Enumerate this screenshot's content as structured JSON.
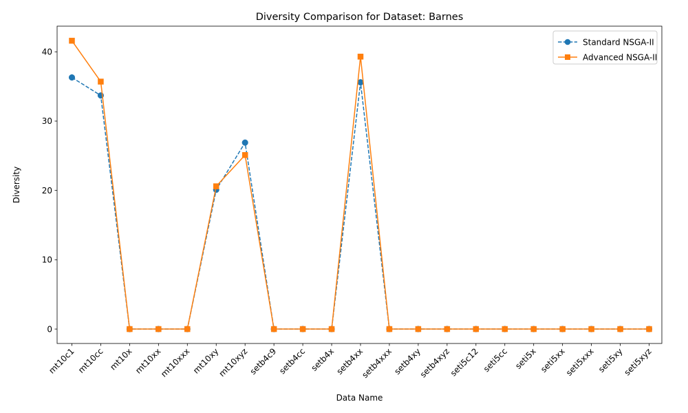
{
  "chart_data": {
    "type": "line",
    "title": "Diversity Comparison for Dataset: Barnes",
    "xlabel": "Data Name",
    "ylabel": "Diversity",
    "categories": [
      "mt10c1",
      "mt10cc",
      "mt10x",
      "mt10xx",
      "mt10xxx",
      "mt10xy",
      "mt10xyz",
      "setb4c9",
      "setb4cc",
      "setb4x",
      "setb4xx",
      "setb4xxx",
      "setb4xy",
      "setb4xyz",
      "seti5c12",
      "seti5cc",
      "seti5x",
      "seti5xx",
      "seti5xxx",
      "seti5xy",
      "seti5xyz"
    ],
    "ylim": [
      -2.08,
      43.7
    ],
    "yticks": [
      0,
      10,
      20,
      30,
      40
    ],
    "grid": false,
    "legend_position": "top-right",
    "series": [
      {
        "name": "Standard NSGA-II",
        "color": "#1f77b4",
        "linestyle": "dashed",
        "marker": "circle",
        "values": [
          36.3,
          33.7,
          0,
          0,
          0,
          20.1,
          26.9,
          0,
          0,
          0,
          35.6,
          0,
          0,
          0,
          0,
          0,
          0,
          0,
          0,
          0,
          0
        ]
      },
      {
        "name": "Advanced NSGA-II",
        "color": "#ff7f0e",
        "linestyle": "solid",
        "marker": "square",
        "values": [
          41.6,
          35.7,
          0,
          0,
          0,
          20.6,
          25.1,
          0,
          0,
          0,
          39.3,
          0,
          0,
          0,
          0,
          0,
          0,
          0,
          0,
          0,
          0
        ]
      }
    ]
  }
}
